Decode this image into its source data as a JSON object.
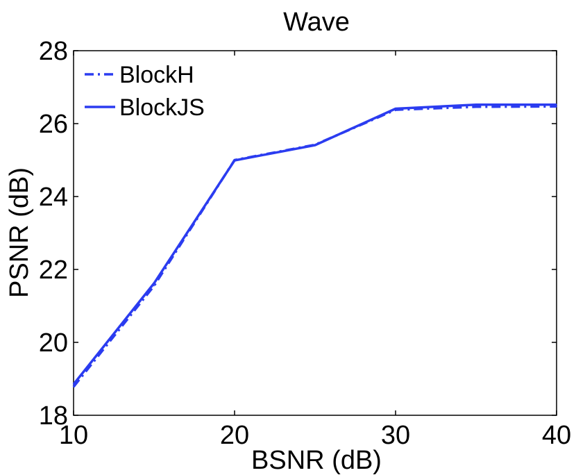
{
  "chart_data": {
    "type": "line",
    "title": "Wave",
    "xlabel": "BSNR (dB)",
    "ylabel": "PSNR (dB)",
    "xlim": [
      10,
      40
    ],
    "ylim": [
      18,
      28
    ],
    "x_ticks": [
      10,
      20,
      30,
      40
    ],
    "y_ticks": [
      18,
      20,
      22,
      24,
      26,
      28
    ],
    "grid": false,
    "legend_position": "top-left",
    "series": [
      {
        "name": "BlockH",
        "line_style": "dash-dot",
        "color": "#2b3cf0",
        "x": [
          10,
          15,
          20,
          25,
          30,
          35,
          40
        ],
        "y": [
          18.78,
          21.55,
          25.0,
          25.42,
          26.38,
          26.46,
          26.47
        ]
      },
      {
        "name": "BlockJS",
        "line_style": "solid",
        "color": "#2b3cf0",
        "x": [
          10,
          15,
          20,
          25,
          30,
          35,
          40
        ],
        "y": [
          18.85,
          21.62,
          24.99,
          25.41,
          26.41,
          26.52,
          26.52
        ]
      }
    ]
  }
}
